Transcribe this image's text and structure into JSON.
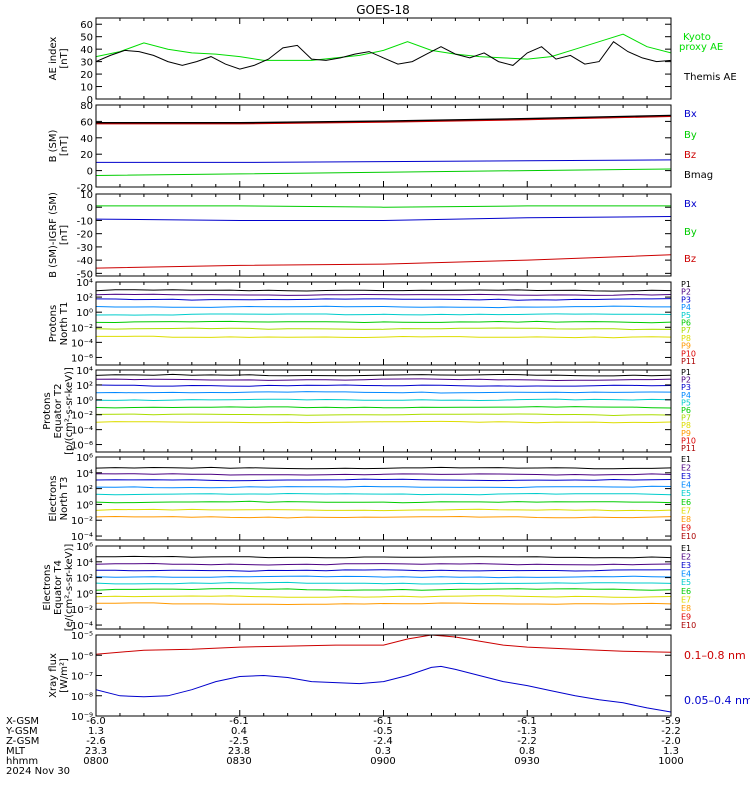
{
  "title": "GOES-18",
  "chart_data": [
    {
      "type": "line",
      "ylabel": [
        "AE index",
        "[nT]"
      ],
      "ylim": [
        0,
        65
      ],
      "log": false,
      "yticks": [
        0,
        10,
        20,
        30,
        40,
        50,
        60
      ],
      "ytick_labels": [
        "0",
        "10",
        "20",
        "30",
        "40",
        "50",
        "60"
      ],
      "legend": [
        {
          "label": "Kyoto",
          "color": "#00dd00"
        },
        {
          "label": "proxy AE",
          "color": "#00dd00"
        },
        {
          "label": "Themis AE",
          "color": "#000000"
        }
      ],
      "series": [
        {
          "name": "Kyoto proxy AE",
          "color": "#00dd00",
          "t": [
            0,
            5,
            10,
            15,
            20,
            25,
            30,
            35,
            40,
            45,
            50,
            55,
            60,
            65,
            70,
            75,
            80,
            85,
            90,
            95,
            100,
            105,
            110,
            115,
            120
          ],
          "y": [
            34,
            38,
            45,
            40,
            37,
            36,
            34,
            31,
            31,
            31,
            33,
            35,
            39,
            46,
            39,
            36,
            34,
            33,
            32,
            34,
            40,
            46,
            52,
            42,
            37
          ]
        },
        {
          "name": "Themis AE",
          "color": "#000000",
          "t": [
            0,
            3,
            6,
            9,
            12,
            15,
            18,
            21,
            24,
            27,
            30,
            33,
            36,
            39,
            42,
            45,
            48,
            51,
            54,
            57,
            60,
            63,
            66,
            69,
            72,
            75,
            78,
            81,
            84,
            87,
            90,
            93,
            96,
            99,
            102,
            105,
            108,
            111,
            114,
            117,
            120
          ],
          "y": [
            30,
            35,
            39,
            38,
            35,
            30,
            27,
            30,
            34,
            28,
            24,
            27,
            32,
            41,
            43,
            32,
            31,
            33,
            36,
            38,
            33,
            28,
            30,
            36,
            42,
            36,
            33,
            37,
            30,
            27,
            37,
            42,
            32,
            35,
            28,
            30,
            46,
            38,
            33,
            30,
            31
          ]
        }
      ]
    },
    {
      "type": "line",
      "ylabel": [
        "B (SM)",
        "[nT]"
      ],
      "ylim": [
        -20,
        80
      ],
      "log": false,
      "yticks": [
        -20,
        0,
        20,
        40,
        60,
        80
      ],
      "ytick_labels": [
        "-20",
        "0",
        "20",
        "40",
        "60",
        "80"
      ],
      "legend": [
        {
          "label": "Bx",
          "color": "#0000cc"
        },
        {
          "label": "By",
          "color": "#00cc00"
        },
        {
          "label": "Bz",
          "color": "#cc0000"
        },
        {
          "label": "Bmag",
          "color": "#000000"
        }
      ],
      "series": [
        {
          "name": "Bmag",
          "color": "#000000",
          "t": [
            0,
            30,
            60,
            90,
            120
          ],
          "y": [
            58,
            58,
            60,
            63,
            67
          ]
        },
        {
          "name": "Bz",
          "color": "#cc0000",
          "t": [
            0,
            30,
            60,
            90,
            120
          ],
          "y": [
            57,
            57,
            59,
            62,
            66
          ]
        },
        {
          "name": "Bx",
          "color": "#0000cc",
          "t": [
            0,
            30,
            60,
            90,
            120
          ],
          "y": [
            10,
            10,
            11,
            12,
            13
          ]
        },
        {
          "name": "By",
          "color": "#00cc00",
          "t": [
            0,
            30,
            60,
            90,
            120
          ],
          "y": [
            -6,
            -4,
            -2,
            0,
            2
          ]
        }
      ]
    },
    {
      "type": "line",
      "ylabel": [
        "B (SM)-IGRF (SM)",
        "[nT]"
      ],
      "ylim": [
        -52,
        10
      ],
      "log": false,
      "yticks": [
        -50,
        -40,
        -30,
        -20,
        -10,
        0,
        10
      ],
      "ytick_labels": [
        "-50",
        "-40",
        "-30",
        "-20",
        "-10",
        "0",
        "10"
      ],
      "legend": [
        {
          "label": "Bx",
          "color": "#0000cc"
        },
        {
          "label": "By",
          "color": "#00cc00"
        },
        {
          "label": "Bz",
          "color": "#cc0000"
        }
      ],
      "series": [
        {
          "name": "By",
          "color": "#00cc00",
          "t": [
            0,
            30,
            60,
            90,
            120
          ],
          "y": [
            1,
            1,
            0,
            1,
            1
          ]
        },
        {
          "name": "Bx",
          "color": "#0000cc",
          "t": [
            0,
            30,
            60,
            90,
            120
          ],
          "y": [
            -9,
            -10,
            -10,
            -8,
            -7
          ]
        },
        {
          "name": "Bz",
          "color": "#cc0000",
          "t": [
            0,
            30,
            60,
            90,
            120
          ],
          "y": [
            -46,
            -44,
            -43,
            -40,
            -36
          ]
        }
      ]
    },
    {
      "type": "line",
      "ylabel": [
        "Protons",
        "North T1"
      ],
      "ylim": [
        -7,
        4
      ],
      "log": true,
      "yticks": [
        -6,
        -4,
        -2,
        0,
        2,
        4
      ],
      "ytick_labels": [
        "10⁻⁶",
        "10⁻⁴",
        "10⁻²",
        "10⁰",
        "10²",
        "10⁴"
      ],
      "legend": [
        {
          "label": "P1",
          "color": "#000000"
        },
        {
          "label": "P2",
          "color": "#4b0082"
        },
        {
          "label": "P3",
          "color": "#0000cc"
        },
        {
          "label": "P4",
          "color": "#0088ff"
        },
        {
          "label": "P5",
          "color": "#00cccc"
        },
        {
          "label": "P6",
          "color": "#00cc00"
        },
        {
          "label": "P7",
          "color": "#aadd00"
        },
        {
          "label": "P8",
          "color": "#dddd00"
        },
        {
          "label": "P9",
          "color": "#ff9900"
        },
        {
          "label": "P10",
          "color": "#dd0000"
        },
        {
          "label": "P11",
          "color": "#aa0000"
        }
      ],
      "series": [
        {
          "name": "P1",
          "color": "#000000",
          "level": 2.9
        },
        {
          "name": "P2",
          "color": "#4b0082",
          "level": 2.3
        },
        {
          "name": "P3",
          "color": "#0000cc",
          "level": 1.7
        },
        {
          "name": "P4",
          "color": "#0088ff",
          "level": 0.7
        },
        {
          "name": "P5",
          "color": "#00cccc",
          "level": -0.3
        },
        {
          "name": "P6",
          "color": "#00cc00",
          "level": -1.3
        },
        {
          "name": "P7",
          "color": "#aadd00",
          "level": -2.2
        },
        {
          "name": "P8",
          "color": "#dddd00",
          "level": -3.3
        }
      ]
    },
    {
      "type": "line",
      "ylabel": [
        "Protons",
        "Equator T2",
        "[p/(cm²-s-sr-keV)]"
      ],
      "ylim": [
        -7,
        4
      ],
      "log": true,
      "yticks": [
        -6,
        -4,
        -2,
        0,
        2,
        4
      ],
      "ytick_labels": [
        "10⁻⁶",
        "10⁻⁴",
        "10⁻²",
        "10⁰",
        "10²",
        "10⁴"
      ],
      "legend": [
        {
          "label": "P1",
          "color": "#000000"
        },
        {
          "label": "P2",
          "color": "#4b0082"
        },
        {
          "label": "P3",
          "color": "#0000cc"
        },
        {
          "label": "P4",
          "color": "#0088ff"
        },
        {
          "label": "P5",
          "color": "#00cccc"
        },
        {
          "label": "P6",
          "color": "#00cc00"
        },
        {
          "label": "P7",
          "color": "#aadd00"
        },
        {
          "label": "P8",
          "color": "#dddd00"
        },
        {
          "label": "P9",
          "color": "#ff9900"
        },
        {
          "label": "P10",
          "color": "#dd0000"
        },
        {
          "label": "P11",
          "color": "#aa0000"
        }
      ],
      "series": [
        {
          "name": "P1",
          "color": "#000000",
          "level": 3.3
        },
        {
          "name": "P2",
          "color": "#4b0082",
          "level": 2.7
        },
        {
          "name": "P3",
          "color": "#0000cc",
          "level": 1.9
        },
        {
          "name": "P4",
          "color": "#0088ff",
          "level": 1.0
        },
        {
          "name": "P5",
          "color": "#00cccc",
          "level": 0.0
        },
        {
          "name": "P6",
          "color": "#00cc00",
          "level": -1.0
        },
        {
          "name": "P7",
          "color": "#aadd00",
          "level": -2.0
        },
        {
          "name": "P8",
          "color": "#dddd00",
          "level": -3.0
        }
      ]
    },
    {
      "type": "line",
      "ylabel": [
        "Electrons",
        "North T3"
      ],
      "ylim": [
        -4.5,
        6
      ],
      "log": true,
      "yticks": [
        -4,
        -2,
        0,
        2,
        4,
        6
      ],
      "ytick_labels": [
        "10⁻⁴",
        "10⁻²",
        "10⁰",
        "10²",
        "10⁴",
        "10⁶"
      ],
      "legend": [
        {
          "label": "E1",
          "color": "#000000"
        },
        {
          "label": "E2",
          "color": "#4b0082"
        },
        {
          "label": "E3",
          "color": "#0000cc"
        },
        {
          "label": "E4",
          "color": "#0088ff"
        },
        {
          "label": "E5",
          "color": "#00cccc"
        },
        {
          "label": "E6",
          "color": "#00cc00"
        },
        {
          "label": "E7",
          "color": "#dddd00"
        },
        {
          "label": "E8",
          "color": "#ff9900"
        },
        {
          "label": "E9",
          "color": "#dd0000"
        },
        {
          "label": "E10",
          "color": "#aa0000"
        }
      ],
      "series": [
        {
          "name": "E1",
          "color": "#000000",
          "level": 4.6
        },
        {
          "name": "E2",
          "color": "#4b0082",
          "level": 3.8
        },
        {
          "name": "E3",
          "color": "#0000cc",
          "level": 3.1
        },
        {
          "name": "E4",
          "color": "#0088ff",
          "level": 2.2
        },
        {
          "name": "E5",
          "color": "#00cccc",
          "level": 1.3
        },
        {
          "name": "E6",
          "color": "#00cc00",
          "level": 0.3
        },
        {
          "name": "E7",
          "color": "#dddd00",
          "level": -0.7
        },
        {
          "name": "E8",
          "color": "#ff9900",
          "level": -1.6
        }
      ]
    },
    {
      "type": "line",
      "ylabel": [
        "Electrons",
        "Equator T4",
        "[e/(cm²-s-sr-keV)]"
      ],
      "ylim": [
        -4.5,
        6
      ],
      "log": true,
      "yticks": [
        -4,
        -2,
        0,
        2,
        4,
        6
      ],
      "ytick_labels": [
        "10⁻⁴",
        "10⁻²",
        "10⁰",
        "10²",
        "10⁴",
        "10⁶"
      ],
      "legend": [
        {
          "label": "E1",
          "color": "#000000"
        },
        {
          "label": "E2",
          "color": "#4b0082"
        },
        {
          "label": "E3",
          "color": "#0000cc"
        },
        {
          "label": "E4",
          "color": "#0088ff"
        },
        {
          "label": "E5",
          "color": "#00cccc"
        },
        {
          "label": "E6",
          "color": "#00cc00"
        },
        {
          "label": "E7",
          "color": "#dddd00"
        },
        {
          "label": "E8",
          "color": "#ff9900"
        },
        {
          "label": "E9",
          "color": "#dd0000"
        },
        {
          "label": "E10",
          "color": "#aa0000"
        }
      ],
      "series": [
        {
          "name": "E1",
          "color": "#000000",
          "level": 4.6
        },
        {
          "name": "E2",
          "color": "#4b0082",
          "level": 3.7
        },
        {
          "name": "E3",
          "color": "#0000cc",
          "level": 2.9
        },
        {
          "name": "E4",
          "color": "#0088ff",
          "level": 2.1
        },
        {
          "name": "E5",
          "color": "#00cccc",
          "level": 1.3
        },
        {
          "name": "E6",
          "color": "#00cc00",
          "level": 0.5
        },
        {
          "name": "E7",
          "color": "#dddd00",
          "level": -0.4
        },
        {
          "name": "E8",
          "color": "#ff9900",
          "level": -1.3
        }
      ]
    },
    {
      "type": "line",
      "ylabel": [
        "Xray flux",
        "[W/m²]"
      ],
      "ylim": [
        -9,
        -5
      ],
      "log": true,
      "yticks": [
        -9,
        -8,
        -7,
        -6,
        -5
      ],
      "ytick_labels": [
        "10⁻⁹",
        "10⁻⁸",
        "10⁻⁷",
        "10⁻⁶",
        "10⁻⁵"
      ],
      "legend": [
        {
          "label": "0.1–0.8 nm",
          "color": "#cc0000"
        },
        {
          "label": "0.05–0.4 nm",
          "color": "#0000cc"
        }
      ],
      "series": [
        {
          "name": "0.1–0.8 nm",
          "color": "#cc0000",
          "t": [
            0,
            10,
            20,
            30,
            40,
            50,
            60,
            65,
            70,
            75,
            80,
            85,
            90,
            100,
            110,
            120
          ],
          "y": [
            -5.95,
            -5.75,
            -5.7,
            -5.6,
            -5.55,
            -5.5,
            -5.5,
            -5.2,
            -5.0,
            -5.1,
            -5.3,
            -5.5,
            -5.6,
            -5.7,
            -5.8,
            -5.85
          ]
        },
        {
          "name": "0.05–0.4 nm",
          "color": "#0000cc",
          "t": [
            0,
            5,
            10,
            15,
            20,
            25,
            30,
            35,
            40,
            45,
            50,
            55,
            60,
            65,
            70,
            72,
            75,
            80,
            85,
            90,
            95,
            100,
            105,
            110,
            115,
            120
          ],
          "y": [
            -7.7,
            -8.0,
            -8.05,
            -8.0,
            -7.7,
            -7.3,
            -7.05,
            -7.0,
            -7.1,
            -7.3,
            -7.35,
            -7.4,
            -7.3,
            -7.0,
            -6.6,
            -6.55,
            -6.7,
            -7.0,
            -7.3,
            -7.5,
            -7.75,
            -8.0,
            -8.2,
            -8.35,
            -8.6,
            -8.8
          ]
        }
      ]
    }
  ],
  "footer": {
    "row_labels": [
      "X-GSM",
      "Y-GSM",
      "Z-GSM",
      "MLT",
      "hhmm",
      "2024 Nov 30"
    ],
    "columns": [
      {
        "values": [
          "-6.0",
          "1.3",
          "-2.6",
          "23.3",
          "0800"
        ]
      },
      {
        "values": [
          "-6.1",
          "0.4",
          "-2.5",
          "23.8",
          "0830"
        ]
      },
      {
        "values": [
          "-6.1",
          "-0.5",
          "-2.4",
          "0.3",
          "0900"
        ]
      },
      {
        "values": [
          "-6.1",
          "-1.3",
          "-2.2",
          "0.8",
          "0930"
        ]
      },
      {
        "values": [
          "-5.9",
          "-2.2",
          "-2.0",
          "1.3",
          "1000"
        ]
      }
    ]
  }
}
